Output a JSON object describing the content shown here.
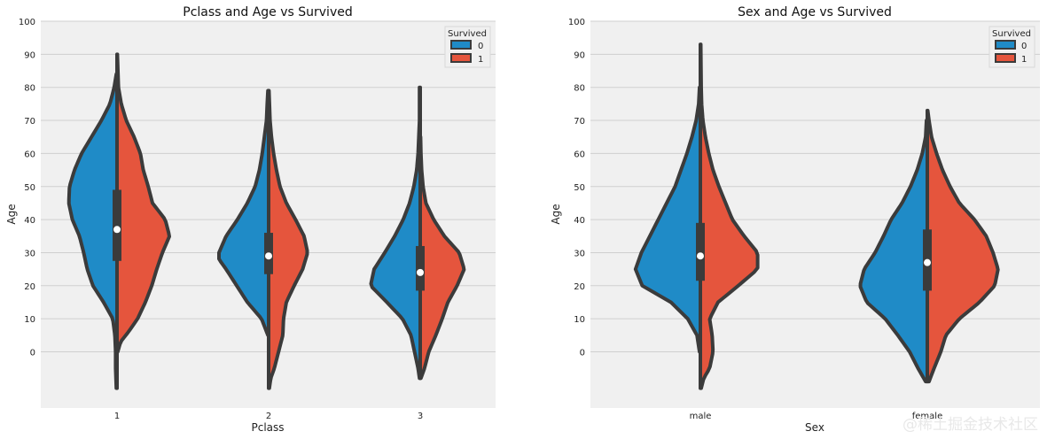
{
  "colors": {
    "died": "#1f8bc7",
    "survived": "#e5553d",
    "outline": "#3b3b3b",
    "plot_bg": "#f0f0f0",
    "grid": "#cfcfcf"
  },
  "watermark": "@稀土掘金技术社区",
  "chart_data": [
    {
      "type": "violin",
      "split": true,
      "title": "Pclass and Age vs Survived",
      "xlabel": "Pclass",
      "ylabel": "Age",
      "ylim": [
        -17,
        100
      ],
      "yticks": [
        0,
        10,
        20,
        30,
        40,
        50,
        60,
        70,
        80,
        90,
        100
      ],
      "grid": true,
      "categories": [
        "1",
        "2",
        "3"
      ],
      "legend": {
        "title": "Survived",
        "placement": "top-right",
        "entries": [
          "0",
          "1"
        ]
      },
      "violins": [
        {
          "category": "1",
          "left": {
            "series": "0",
            "profile": [
              [
                -11,
                0.01
              ],
              [
                -5,
                0.02
              ],
              [
                0,
                0.02
              ],
              [
                5,
                0.03
              ],
              [
                10,
                0.06
              ],
              [
                15,
                0.19
              ],
              [
                20,
                0.34
              ],
              [
                25,
                0.42
              ],
              [
                30,
                0.47
              ],
              [
                35,
                0.53
              ],
              [
                40,
                0.63
              ],
              [
                45,
                0.68
              ],
              [
                50,
                0.67
              ],
              [
                55,
                0.6
              ],
              [
                60,
                0.5
              ],
              [
                65,
                0.36
              ],
              [
                70,
                0.22
              ],
              [
                75,
                0.1
              ],
              [
                80,
                0.04
              ],
              [
                84,
                0.01
              ]
            ]
          },
          "right": {
            "series": "1",
            "profile": [
              [
                0,
                0.01
              ],
              [
                3,
                0.05
              ],
              [
                6,
                0.16
              ],
              [
                10,
                0.29
              ],
              [
                15,
                0.4
              ],
              [
                20,
                0.49
              ],
              [
                25,
                0.56
              ],
              [
                30,
                0.64
              ],
              [
                35,
                0.74
              ],
              [
                40,
                0.68
              ],
              [
                45,
                0.5
              ],
              [
                50,
                0.44
              ],
              [
                55,
                0.37
              ],
              [
                60,
                0.33
              ],
              [
                65,
                0.24
              ],
              [
                70,
                0.13
              ],
              [
                75,
                0.06
              ],
              [
                80,
                0.02
              ],
              [
                90,
                0.005
              ]
            ]
          },
          "quartiles": [
            27.5,
            37,
            49
          ]
        },
        {
          "category": "2",
          "left": {
            "series": "0",
            "profile": [
              [
                5,
                0.01
              ],
              [
                10,
                0.1
              ],
              [
                15,
                0.3
              ],
              [
                20,
                0.45
              ],
              [
                25,
                0.6
              ],
              [
                28,
                0.7
              ],
              [
                30,
                0.7
              ],
              [
                35,
                0.6
              ],
              [
                40,
                0.44
              ],
              [
                45,
                0.3
              ],
              [
                50,
                0.19
              ],
              [
                55,
                0.13
              ],
              [
                60,
                0.09
              ],
              [
                65,
                0.06
              ],
              [
                70,
                0.03
              ],
              [
                75,
                0.02
              ],
              [
                79,
                0.01
              ]
            ]
          },
          "right": {
            "series": "1",
            "profile": [
              [
                -11,
                0.01
              ],
              [
                -8,
                0.03
              ],
              [
                -5,
                0.08
              ],
              [
                0,
                0.14
              ],
              [
                5,
                0.2
              ],
              [
                10,
                0.21
              ],
              [
                15,
                0.25
              ],
              [
                20,
                0.36
              ],
              [
                25,
                0.48
              ],
              [
                30,
                0.55
              ],
              [
                35,
                0.5
              ],
              [
                40,
                0.38
              ],
              [
                45,
                0.25
              ],
              [
                50,
                0.16
              ],
              [
                55,
                0.11
              ],
              [
                60,
                0.07
              ],
              [
                65,
                0.04
              ],
              [
                70,
                0.02
              ],
              [
                79,
                0.005
              ]
            ]
          },
          "quartiles": [
            23.5,
            29,
            36
          ]
        },
        {
          "category": "3",
          "left": {
            "series": "0",
            "profile": [
              [
                -8,
                0.01
              ],
              [
                -5,
                0.03
              ],
              [
                0,
                0.08
              ],
              [
                5,
                0.13
              ],
              [
                10,
                0.25
              ],
              [
                15,
                0.47
              ],
              [
                20,
                0.7
              ],
              [
                25,
                0.65
              ],
              [
                30,
                0.5
              ],
              [
                35,
                0.36
              ],
              [
                40,
                0.24
              ],
              [
                45,
                0.15
              ],
              [
                50,
                0.09
              ],
              [
                55,
                0.05
              ],
              [
                60,
                0.03
              ],
              [
                70,
                0.01
              ],
              [
                80,
                0.01
              ]
            ]
          },
          "right": {
            "series": "1",
            "profile": [
              [
                -8,
                0.01
              ],
              [
                -5,
                0.06
              ],
              [
                0,
                0.12
              ],
              [
                5,
                0.22
              ],
              [
                10,
                0.31
              ],
              [
                15,
                0.39
              ],
              [
                20,
                0.52
              ],
              [
                25,
                0.62
              ],
              [
                30,
                0.55
              ],
              [
                35,
                0.34
              ],
              [
                40,
                0.19
              ],
              [
                45,
                0.08
              ],
              [
                50,
                0.04
              ],
              [
                55,
                0.02
              ],
              [
                60,
                0.01
              ],
              [
                65,
                0.005
              ]
            ]
          },
          "quartiles": [
            18.5,
            24,
            32
          ]
        }
      ]
    },
    {
      "type": "violin",
      "split": true,
      "title": "Sex and Age vs Survived",
      "xlabel": "Sex",
      "ylabel": "Age",
      "ylim": [
        -17,
        100
      ],
      "yticks": [
        0,
        10,
        20,
        30,
        40,
        50,
        60,
        70,
        80,
        90,
        100
      ],
      "grid": true,
      "categories": [
        "male",
        "female"
      ],
      "legend": {
        "title": "Survived",
        "placement": "top-right",
        "entries": [
          "0",
          "1"
        ]
      },
      "violins": [
        {
          "category": "male",
          "left": {
            "series": "0",
            "profile": [
              [
                0,
                0.01
              ],
              [
                5,
                0.04
              ],
              [
                10,
                0.15
              ],
              [
                15,
                0.35
              ],
              [
                20,
                0.69
              ],
              [
                25,
                0.77
              ],
              [
                30,
                0.7
              ],
              [
                35,
                0.6
              ],
              [
                40,
                0.5
              ],
              [
                45,
                0.4
              ],
              [
                50,
                0.3
              ],
              [
                55,
                0.23
              ],
              [
                60,
                0.16
              ],
              [
                65,
                0.1
              ],
              [
                70,
                0.05
              ],
              [
                75,
                0.02
              ],
              [
                80,
                0.01
              ]
            ]
          },
          "right": {
            "series": "1",
            "profile": [
              [
                -11,
                0.01
              ],
              [
                -8,
                0.04
              ],
              [
                -5,
                0.11
              ],
              [
                0,
                0.15
              ],
              [
                5,
                0.14
              ],
              [
                10,
                0.11
              ],
              [
                15,
                0.21
              ],
              [
                20,
                0.45
              ],
              [
                25,
                0.68
              ],
              [
                30,
                0.68
              ],
              [
                35,
                0.52
              ],
              [
                40,
                0.38
              ],
              [
                45,
                0.3
              ],
              [
                50,
                0.22
              ],
              [
                55,
                0.15
              ],
              [
                60,
                0.1
              ],
              [
                65,
                0.06
              ],
              [
                70,
                0.03
              ],
              [
                75,
                0.015
              ],
              [
                80,
                0.01
              ],
              [
                93,
                0.005
              ]
            ]
          },
          "quartiles": [
            21.5,
            29,
            39
          ]
        },
        {
          "category": "female",
          "left": {
            "series": "0",
            "profile": [
              [
                -9,
                0.02
              ],
              [
                -5,
                0.11
              ],
              [
                0,
                0.21
              ],
              [
                5,
                0.35
              ],
              [
                10,
                0.5
              ],
              [
                15,
                0.72
              ],
              [
                20,
                0.8
              ],
              [
                25,
                0.75
              ],
              [
                30,
                0.62
              ],
              [
                35,
                0.52
              ],
              [
                40,
                0.43
              ],
              [
                45,
                0.3
              ],
              [
                50,
                0.2
              ],
              [
                55,
                0.12
              ],
              [
                60,
                0.06
              ],
              [
                65,
                0.02
              ],
              [
                70,
                0.01
              ]
            ]
          },
          "right": {
            "series": "1",
            "profile": [
              [
                -9,
                0.02
              ],
              [
                -5,
                0.08
              ],
              [
                0,
                0.16
              ],
              [
                5,
                0.22
              ],
              [
                10,
                0.38
              ],
              [
                15,
                0.62
              ],
              [
                20,
                0.8
              ],
              [
                25,
                0.84
              ],
              [
                30,
                0.78
              ],
              [
                35,
                0.7
              ],
              [
                40,
                0.56
              ],
              [
                45,
                0.38
              ],
              [
                50,
                0.27
              ],
              [
                55,
                0.18
              ],
              [
                60,
                0.11
              ],
              [
                65,
                0.05
              ],
              [
                70,
                0.02
              ],
              [
                73,
                0.005
              ]
            ]
          },
          "quartiles": [
            18.5,
            27,
            37
          ]
        }
      ]
    }
  ]
}
